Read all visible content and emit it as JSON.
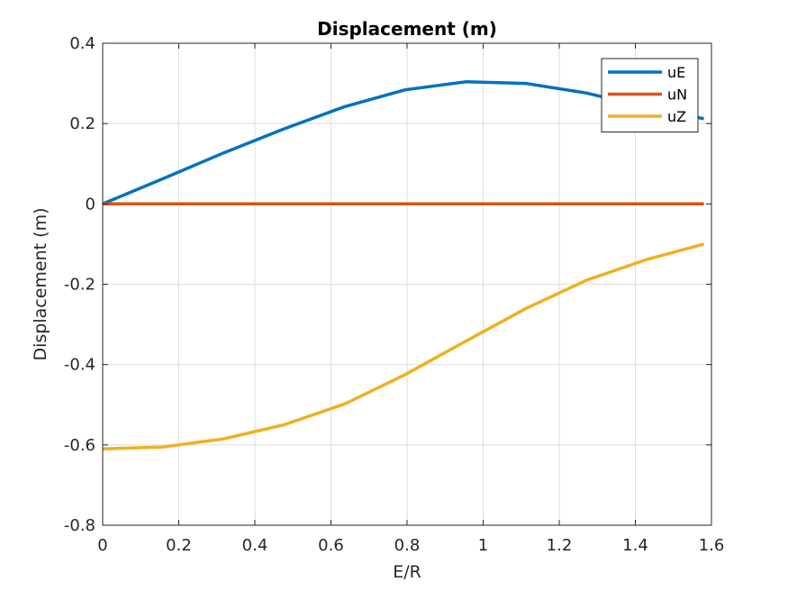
{
  "chart_data": {
    "type": "line",
    "title": "Displacement (m)",
    "xlabel": "E/R",
    "ylabel": "Displacement (m)",
    "xlim": [
      0,
      1.6
    ],
    "ylim": [
      -0.8,
      0.4
    ],
    "xticks": [
      0,
      0.2,
      0.4,
      0.6,
      0.8,
      1.0,
      1.2,
      1.4,
      1.6
    ],
    "xtick_labels": [
      "0",
      "0.2",
      "0.4",
      "0.6",
      "0.8",
      "1",
      "1.2",
      "1.4",
      "1.6"
    ],
    "yticks": [
      -0.8,
      -0.6,
      -0.4,
      -0.2,
      0,
      0.2,
      0.4
    ],
    "ytick_labels": [
      "-0.8",
      "-0.6",
      "-0.4",
      "-0.2",
      "0",
      "0.2",
      "0.4"
    ],
    "grid": true,
    "legend_position": "top-right",
    "x": [
      0,
      0.159,
      0.318,
      0.477,
      0.636,
      0.795,
      0.954,
      1.113,
      1.272,
      1.431,
      1.58
    ],
    "series": [
      {
        "name": "uE",
        "color": "#0072BD",
        "values": [
          0.0,
          0.063,
          0.127,
          0.187,
          0.242,
          0.284,
          0.304,
          0.3,
          0.276,
          0.24,
          0.212
        ]
      },
      {
        "name": "uN",
        "color": "#D95319",
        "values": [
          0,
          0,
          0,
          0,
          0,
          0,
          0,
          0,
          0,
          0,
          0
        ]
      },
      {
        "name": "uZ",
        "color": "#EDB120",
        "values": [
          -0.61,
          -0.605,
          -0.585,
          -0.55,
          -0.498,
          -0.425,
          -0.342,
          -0.26,
          -0.19,
          -0.138,
          -0.1
        ]
      }
    ]
  }
}
